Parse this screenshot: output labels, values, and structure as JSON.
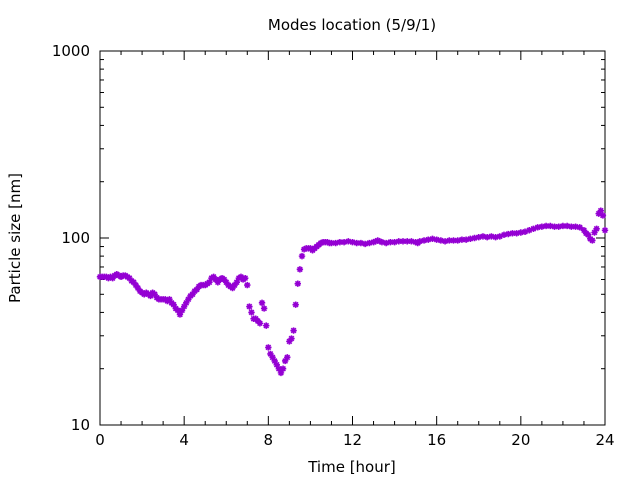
{
  "chart_data": {
    "type": "scatter",
    "title": "Modes location (5/9/1)",
    "xlabel": "Time [hour]",
    "ylabel": "Particle size [nm]",
    "xlim": [
      0,
      24
    ],
    "ylim": [
      10,
      1000
    ],
    "yscale": "log",
    "grid": false,
    "marker_color": "#9400d3",
    "x_ticks": [
      0,
      4,
      8,
      12,
      16,
      20,
      24
    ],
    "x_tick_labels": [
      "0",
      "4",
      "8",
      "12",
      "16",
      "20",
      "24"
    ],
    "y_ticks": [
      10,
      100,
      1000
    ],
    "y_tick_labels": [
      "10",
      "100",
      "1000"
    ],
    "series": [
      {
        "points": [
          [
            0.0,
            62
          ],
          [
            0.1,
            62
          ],
          [
            0.2,
            62
          ],
          [
            0.3,
            62
          ],
          [
            0.4,
            61
          ],
          [
            0.5,
            62
          ],
          [
            0.6,
            61
          ],
          [
            0.7,
            63
          ],
          [
            0.8,
            64
          ],
          [
            0.9,
            63
          ],
          [
            1.0,
            62
          ],
          [
            1.1,
            63
          ],
          [
            1.2,
            63
          ],
          [
            1.3,
            62
          ],
          [
            1.4,
            61
          ],
          [
            1.5,
            59
          ],
          [
            1.6,
            58
          ],
          [
            1.7,
            56
          ],
          [
            1.8,
            54
          ],
          [
            1.9,
            52
          ],
          [
            2.0,
            51
          ],
          [
            2.1,
            50
          ],
          [
            2.2,
            51
          ],
          [
            2.3,
            50
          ],
          [
            2.4,
            49
          ],
          [
            2.5,
            51
          ],
          [
            2.6,
            50
          ],
          [
            2.7,
            48
          ],
          [
            2.8,
            47
          ],
          [
            2.9,
            47
          ],
          [
            3.0,
            47
          ],
          [
            3.1,
            47
          ],
          [
            3.2,
            46
          ],
          [
            3.3,
            47
          ],
          [
            3.4,
            45
          ],
          [
            3.5,
            44
          ],
          [
            3.6,
            42
          ],
          [
            3.7,
            41
          ],
          [
            3.8,
            39
          ],
          [
            3.9,
            41
          ],
          [
            4.0,
            43
          ],
          [
            4.1,
            45
          ],
          [
            4.2,
            47
          ],
          [
            4.3,
            49
          ],
          [
            4.4,
            50
          ],
          [
            4.5,
            52
          ],
          [
            4.6,
            53
          ],
          [
            4.7,
            55
          ],
          [
            4.8,
            56
          ],
          [
            4.9,
            56
          ],
          [
            5.0,
            56
          ],
          [
            5.1,
            57
          ],
          [
            5.2,
            58
          ],
          [
            5.3,
            61
          ],
          [
            5.4,
            62
          ],
          [
            5.5,
            60
          ],
          [
            5.6,
            58
          ],
          [
            5.7,
            60
          ],
          [
            5.8,
            61
          ],
          [
            5.9,
            60
          ],
          [
            6.0,
            58
          ],
          [
            6.1,
            56
          ],
          [
            6.2,
            55
          ],
          [
            6.3,
            54
          ],
          [
            6.4,
            56
          ],
          [
            6.5,
            58
          ],
          [
            6.6,
            61
          ],
          [
            6.7,
            62
          ],
          [
            6.8,
            60
          ],
          [
            6.9,
            61
          ],
          [
            7.0,
            56
          ],
          [
            7.1,
            43
          ],
          [
            7.2,
            40
          ],
          [
            7.3,
            37
          ],
          [
            7.4,
            37
          ],
          [
            7.5,
            36
          ],
          [
            7.6,
            35
          ],
          [
            7.7,
            45
          ],
          [
            7.8,
            42
          ],
          [
            7.9,
            34
          ],
          [
            8.0,
            26
          ],
          [
            8.1,
            24
          ],
          [
            8.2,
            23
          ],
          [
            8.3,
            22
          ],
          [
            8.4,
            21
          ],
          [
            8.5,
            20
          ],
          [
            8.6,
            19
          ],
          [
            8.7,
            20
          ],
          [
            8.8,
            22
          ],
          [
            8.9,
            23
          ],
          [
            9.0,
            28
          ],
          [
            9.1,
            29
          ],
          [
            9.2,
            32
          ],
          [
            9.3,
            44
          ],
          [
            9.4,
            57
          ],
          [
            9.5,
            68
          ],
          [
            9.6,
            80
          ],
          [
            9.7,
            87
          ],
          [
            9.8,
            88
          ],
          [
            9.9,
            88
          ],
          [
            10.0,
            88
          ],
          [
            10.1,
            86
          ],
          [
            10.2,
            88
          ],
          [
            10.3,
            90
          ],
          [
            10.4,
            92
          ],
          [
            10.5,
            94
          ],
          [
            10.6,
            95
          ],
          [
            10.7,
            95
          ],
          [
            10.8,
            95
          ],
          [
            10.9,
            94
          ],
          [
            11.0,
            94
          ],
          [
            11.2,
            94
          ],
          [
            11.4,
            95
          ],
          [
            11.6,
            95
          ],
          [
            11.8,
            96
          ],
          [
            12.0,
            95
          ],
          [
            12.2,
            94
          ],
          [
            12.4,
            94
          ],
          [
            12.6,
            93
          ],
          [
            12.8,
            94
          ],
          [
            13.0,
            95
          ],
          [
            13.1,
            96
          ],
          [
            13.2,
            97
          ],
          [
            13.3,
            96
          ],
          [
            13.4,
            95
          ],
          [
            13.6,
            94
          ],
          [
            13.8,
            95
          ],
          [
            14.0,
            95
          ],
          [
            14.2,
            96
          ],
          [
            14.4,
            96
          ],
          [
            14.6,
            96
          ],
          [
            14.8,
            96
          ],
          [
            15.0,
            95
          ],
          [
            15.1,
            94
          ],
          [
            15.2,
            96
          ],
          [
            15.4,
            97
          ],
          [
            15.6,
            98
          ],
          [
            15.8,
            99
          ],
          [
            16.0,
            98
          ],
          [
            16.2,
            97
          ],
          [
            16.4,
            96
          ],
          [
            16.6,
            97
          ],
          [
            16.8,
            97
          ],
          [
            17.0,
            97
          ],
          [
            17.2,
            98
          ],
          [
            17.4,
            98
          ],
          [
            17.6,
            99
          ],
          [
            17.8,
            100
          ],
          [
            18.0,
            101
          ],
          [
            18.2,
            102
          ],
          [
            18.4,
            101
          ],
          [
            18.6,
            102
          ],
          [
            18.8,
            101
          ],
          [
            19.0,
            102
          ],
          [
            19.2,
            104
          ],
          [
            19.4,
            105
          ],
          [
            19.6,
            106
          ],
          [
            19.8,
            106
          ],
          [
            20.0,
            107
          ],
          [
            20.2,
            108
          ],
          [
            20.4,
            110
          ],
          [
            20.6,
            112
          ],
          [
            20.8,
            114
          ],
          [
            21.0,
            115
          ],
          [
            21.2,
            116
          ],
          [
            21.4,
            116
          ],
          [
            21.6,
            115
          ],
          [
            21.8,
            115
          ],
          [
            22.0,
            116
          ],
          [
            22.2,
            116
          ],
          [
            22.4,
            115
          ],
          [
            22.6,
            115
          ],
          [
            22.8,
            114
          ],
          [
            23.0,
            110
          ],
          [
            23.1,
            106
          ],
          [
            23.2,
            104
          ],
          [
            23.3,
            99
          ],
          [
            23.4,
            97
          ],
          [
            23.5,
            107
          ],
          [
            23.6,
            112
          ],
          [
            23.7,
            135
          ],
          [
            23.8,
            140
          ],
          [
            23.9,
            132
          ],
          [
            24.0,
            110
          ]
        ]
      }
    ]
  }
}
